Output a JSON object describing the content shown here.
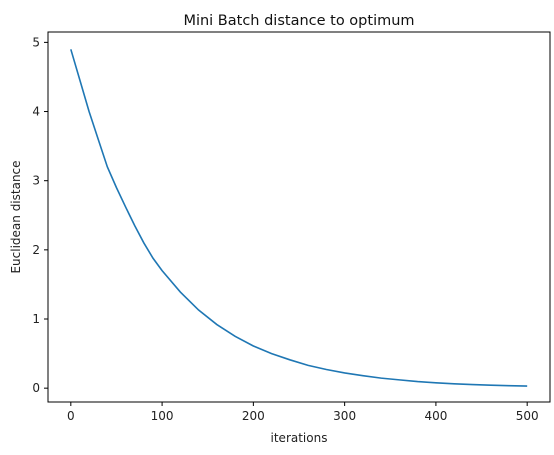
{
  "chart_data": {
    "type": "line",
    "title": "Mini Batch distance to optimum",
    "xlabel": "iterations",
    "ylabel": "Euclidean distance",
    "xlim": [
      -25,
      525
    ],
    "ylim": [
      -0.2,
      5.15
    ],
    "xticks": [
      0,
      100,
      200,
      300,
      400,
      500
    ],
    "yticks": [
      0,
      1,
      2,
      3,
      4,
      5
    ],
    "grid": false,
    "legend": "none",
    "color": "#1f77b4",
    "series": [
      {
        "x": [
          0,
          10,
          20,
          30,
          40,
          50,
          60,
          70,
          80,
          90,
          100,
          120,
          140,
          160,
          180,
          200,
          220,
          240,
          260,
          280,
          300,
          320,
          340,
          360,
          380,
          400,
          420,
          440,
          460,
          480,
          500
        ],
        "values": [
          4.9,
          4.45,
          4.0,
          3.6,
          3.2,
          2.9,
          2.62,
          2.35,
          2.1,
          1.88,
          1.7,
          1.39,
          1.13,
          0.92,
          0.75,
          0.61,
          0.5,
          0.41,
          0.33,
          0.27,
          0.22,
          0.18,
          0.145,
          0.12,
          0.095,
          0.077,
          0.063,
          0.052,
          0.043,
          0.036,
          0.03
        ]
      }
    ]
  }
}
